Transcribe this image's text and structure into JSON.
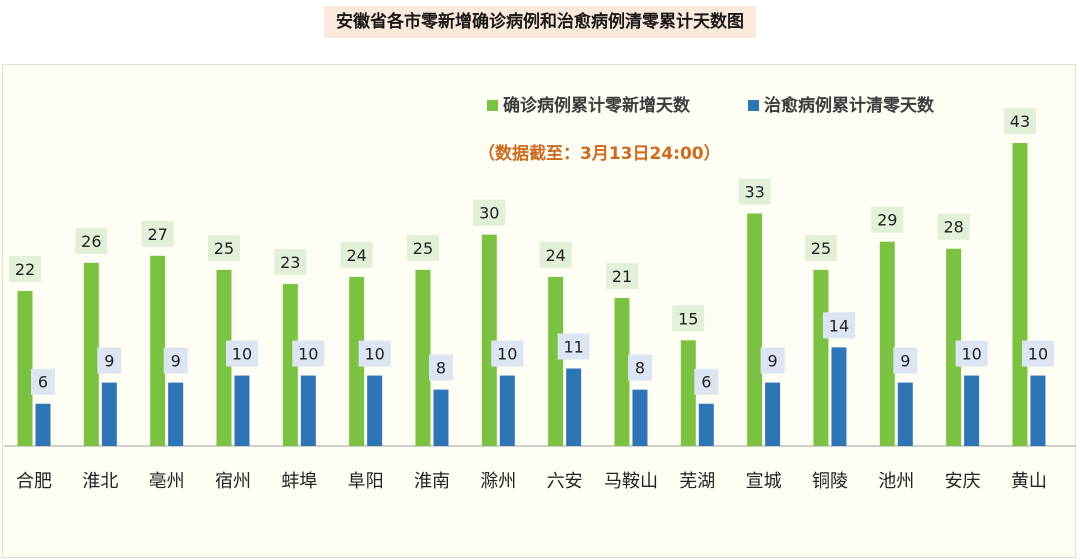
{
  "chart_data": {
    "type": "bar",
    "title": "安徽省各市零新增确诊病例和治愈病例清零累计天数图",
    "note": "（数据截至：3月13日24:00）",
    "categories": [
      "合肥",
      "淮北",
      "亳州",
      "宿州",
      "蚌埠",
      "阜阳",
      "淮南",
      "滁州",
      "六安",
      "马鞍山",
      "芜湖",
      "宣城",
      "铜陵",
      "池州",
      "安庆",
      "黄山"
    ],
    "series": [
      {
        "name": "确诊病例累计零新增天数",
        "color": "#7cc242",
        "values": [
          22,
          26,
          27,
          25,
          23,
          24,
          25,
          30,
          24,
          21,
          15,
          33,
          25,
          29,
          28,
          43
        ]
      },
      {
        "name": "治愈病例累计清零天数",
        "color": "#2e75b6",
        "values": [
          6,
          9,
          9,
          10,
          10,
          10,
          8,
          10,
          11,
          8,
          6,
          9,
          14,
          9,
          10,
          10
        ]
      }
    ],
    "ylim": [
      0,
      44
    ],
    "legend_position": "top-right",
    "grid": false
  }
}
